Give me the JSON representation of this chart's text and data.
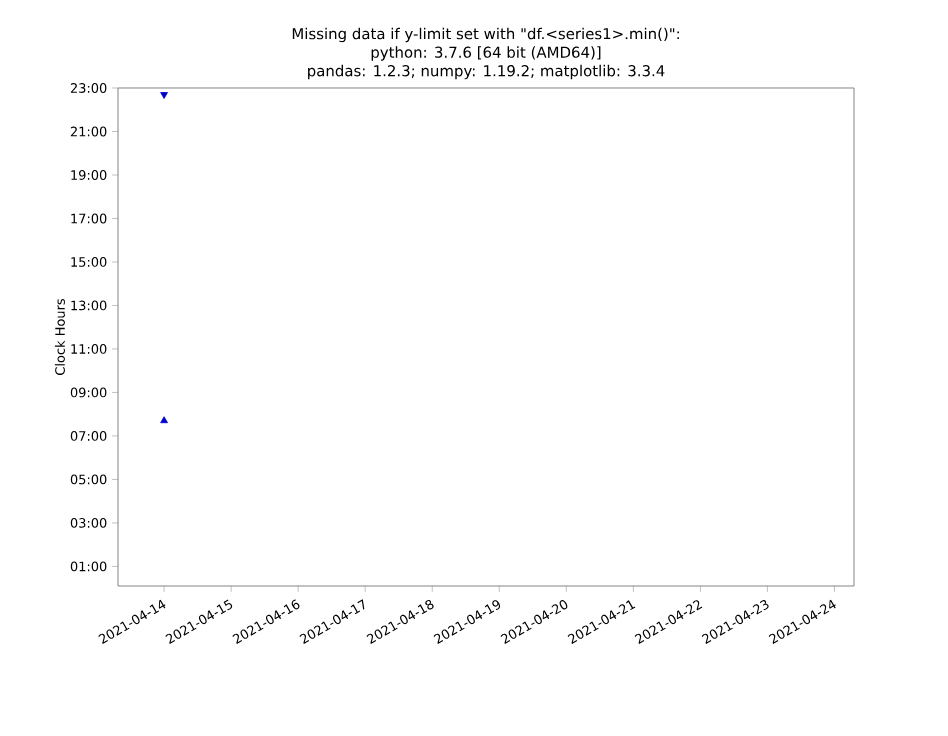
{
  "chart_data": {
    "type": "scatter",
    "title": "Missing data if y-limit set with \"df.<series1>.min()\":",
    "subtitle": "python: 3.7.6 [64 bit (AMD64)]",
    "annotations": [
      "pandas: 1.2.3; numpy: 1.19.2; matplotlib: 3.3.4"
    ],
    "ylabel": "Clock Hours",
    "series": [
      {
        "color": "#0000cc",
        "marker": "triangle_down",
        "x": [
          "2021-04-14"
        ],
        "values": [
          22.7
        ]
      },
      {
        "color": "#0000cc",
        "marker": "triangle",
        "x": [
          "2021-04-14"
        ],
        "values": [
          7.7
        ]
      }
    ],
    "xlim": [
      "2021-04-13T07:30",
      "2021-04-24T07:00"
    ],
    "xticks": [
      "2021-04-14",
      "2021-04-15",
      "2021-04-16",
      "2021-04-17",
      "2021-04-18",
      "2021-04-19",
      "2021-04-20",
      "2021-04-21",
      "2021-04-22",
      "2021-04-23",
      "2021-04-24"
    ],
    "ylim": [
      0.1,
      23
    ],
    "yticks": [
      {
        "value": 1,
        "label": "01:00"
      },
      {
        "value": 3,
        "label": "03:00"
      },
      {
        "value": 5,
        "label": "05:00"
      },
      {
        "value": 7,
        "label": "07:00"
      },
      {
        "value": 9,
        "label": "09:00"
      },
      {
        "value": 11,
        "label": "11:00"
      },
      {
        "value": 13,
        "label": "13:00"
      },
      {
        "value": 15,
        "label": "15:00"
      },
      {
        "value": 17,
        "label": "17:00"
      },
      {
        "value": 19,
        "label": "19:00"
      },
      {
        "value": 21,
        "label": "21:00"
      },
      {
        "value": 23,
        "label": "23:00"
      }
    ],
    "tick_labels": "xy"
  }
}
